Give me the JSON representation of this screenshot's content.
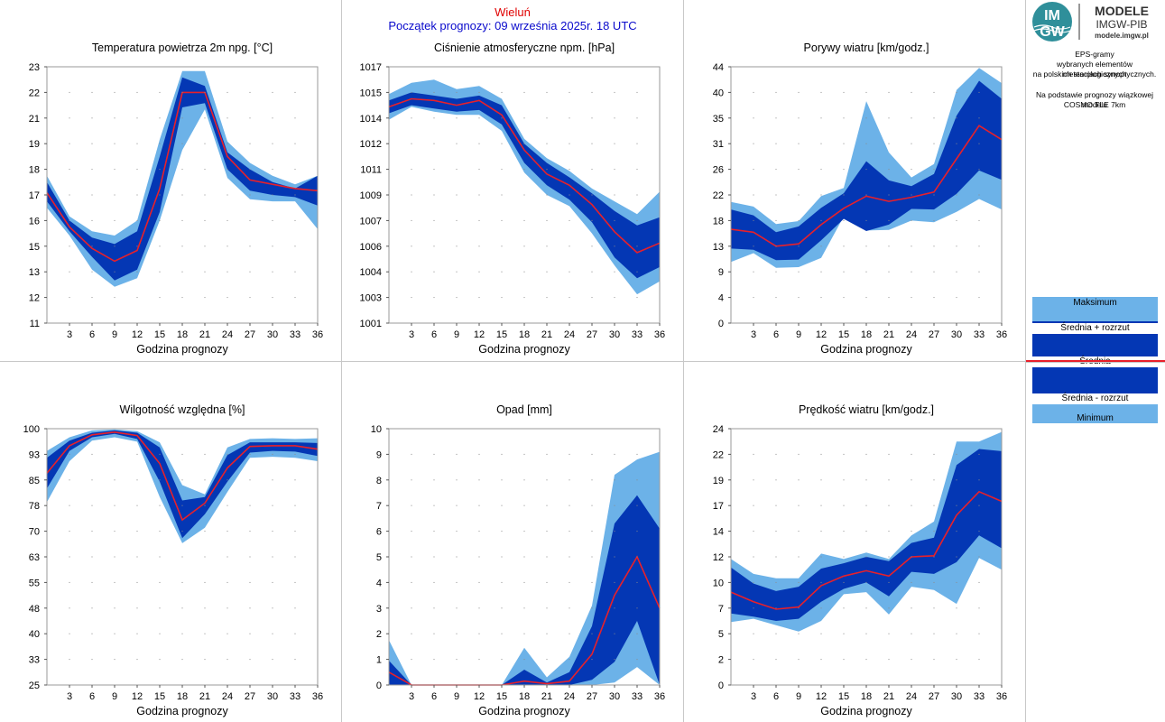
{
  "header": {
    "station": "Wieluń",
    "start": "Początek prognozy: 09 września 2025r. 18 UTC"
  },
  "logo": {
    "badge_top": "IM",
    "badge_bottom": "GW",
    "line1": "MODELE",
    "line2": "IMGW-PIB",
    "url": "modele.imgw.pl"
  },
  "side": {
    "desc1": "EPS-gramy",
    "desc2": "wybranych elementów meteorologicznych",
    "desc3": "na polskich stacjach  synoptycznych.",
    "desc4": "Na podstawie prognozy wiązkowej modelu",
    "desc5": "COSMO TLE 7km"
  },
  "legend": {
    "max": "Maksimum",
    "plus": "Średnia + rozrzut",
    "mean": "Średnia",
    "minus": "Średnia - rozrzut",
    "min": "Minimum"
  },
  "colors": {
    "outer_band": "#6cb2e8",
    "inner_band": "#0437b4",
    "mean_line": "#e8202a",
    "header_red": "#e00000",
    "header_blue": "#0a0acc"
  },
  "chart_data": [
    {
      "id": "temp",
      "type": "area",
      "title": "Temperatura powietrza 2m npg. [°C]",
      "xlabel": "Godzina prognozy",
      "xlim": [
        0,
        36
      ],
      "ylim": [
        11,
        23
      ],
      "xticks": [
        3,
        6,
        9,
        12,
        15,
        18,
        21,
        24,
        27,
        30,
        33,
        36
      ],
      "yticks": [
        "11",
        "12",
        "13",
        "15",
        "16",
        "17",
        "18",
        "19",
        "21",
        "22",
        "23"
      ],
      "x": [
        0,
        3,
        6,
        9,
        12,
        15,
        18,
        21,
        24,
        27,
        30,
        33,
        36
      ],
      "max": [
        17.9,
        16.0,
        15.3,
        15.1,
        15.8,
        19.6,
        22.8,
        22.8,
        19.5,
        18.5,
        17.9,
        17.5,
        17.9
      ],
      "plus": [
        17.6,
        15.8,
        15.0,
        14.7,
        15.3,
        18.8,
        22.5,
        22.1,
        19.0,
        18.2,
        17.6,
        17.3,
        17.9
      ],
      "mean": [
        17.1,
        15.5,
        14.5,
        13.9,
        14.4,
        17.3,
        21.8,
        21.8,
        18.8,
        17.7,
        17.5,
        17.3,
        17.2
      ],
      "minus": [
        16.7,
        15.3,
        14.1,
        13.0,
        13.5,
        16.2,
        21.1,
        21.3,
        18.2,
        17.2,
        17.0,
        16.9,
        16.5
      ],
      "min": [
        16.4,
        15.1,
        13.5,
        12.7,
        13.1,
        15.8,
        19.1,
        21.0,
        17.8,
        16.8,
        16.7,
        16.7,
        15.4
      ]
    },
    {
      "id": "press",
      "type": "area",
      "title": "Ciśnienie atmosferyczne npm. [hPa]",
      "xlabel": "Godzina prognozy",
      "xlim": [
        0,
        36
      ],
      "ylim": [
        1001,
        1017
      ],
      "xticks": [
        3,
        6,
        9,
        12,
        15,
        18,
        21,
        24,
        27,
        30,
        33,
        36
      ],
      "yticks": [
        "1001",
        "1003",
        "1004",
        "1006",
        "1007",
        "1009",
        "1011",
        "1012",
        "1014",
        "1015",
        "1017"
      ],
      "x": [
        0,
        3,
        6,
        9,
        12,
        15,
        18,
        21,
        24,
        27,
        30,
        33,
        36
      ],
      "max": [
        1015.3,
        1016.0,
        1016.2,
        1015.6,
        1015.8,
        1015.0,
        1012.5,
        1011.3,
        1010.5,
        1009.4,
        1008.6,
        1007.8,
        1009.2
      ],
      "plus": [
        1014.9,
        1015.4,
        1015.2,
        1015.0,
        1015.2,
        1014.6,
        1012.2,
        1011.0,
        1010.1,
        1009.1,
        1008.0,
        1007.1,
        1007.6
      ],
      "mean": [
        1014.5,
        1015.0,
        1014.9,
        1014.6,
        1014.9,
        1014.0,
        1011.8,
        1010.3,
        1009.6,
        1008.4,
        1006.7,
        1005.4,
        1006.0
      ],
      "minus": [
        1014.1,
        1014.6,
        1014.4,
        1014.2,
        1014.3,
        1013.4,
        1011.0,
        1009.6,
        1008.7,
        1007.3,
        1005.1,
        1003.8,
        1004.5
      ],
      "min": [
        1013.7,
        1014.5,
        1014.2,
        1014.0,
        1014.0,
        1013.0,
        1010.4,
        1009.0,
        1008.3,
        1006.6,
        1004.6,
        1002.8,
        1003.6
      ]
    },
    {
      "id": "gust",
      "type": "area",
      "title": "Porywy wiatru [km/godz.]",
      "xlabel": "Godzina prognozy",
      "xlim": [
        0,
        36
      ],
      "ylim": [
        0,
        44
      ],
      "xticks": [
        3,
        6,
        9,
        12,
        15,
        18,
        21,
        24,
        27,
        30,
        33,
        36
      ],
      "yticks": [
        "0",
        "4",
        "9",
        "13",
        "18",
        "22",
        "26",
        "31",
        "35",
        "40",
        "44"
      ],
      "x": [
        0,
        3,
        6,
        9,
        12,
        15,
        18,
        21,
        24,
        27,
        30,
        33,
        36
      ],
      "max": [
        20.8,
        20.0,
        17.0,
        17.5,
        21.8,
        23.2,
        38.1,
        29.3,
        25.0,
        27.3,
        40.0,
        43.8,
        41.2
      ],
      "plus": [
        19.5,
        18.5,
        15.6,
        16.6,
        19.8,
        22.3,
        27.8,
        24.5,
        23.5,
        25.6,
        35.6,
        41.6,
        38.5
      ],
      "mean": [
        16.1,
        15.6,
        13.2,
        13.6,
        16.9,
        19.7,
        21.8,
        20.9,
        21.6,
        22.5,
        28.2,
        33.9,
        31.5
      ],
      "minus": [
        12.8,
        12.6,
        10.8,
        10.9,
        14.2,
        17.9,
        15.8,
        16.9,
        19.6,
        19.5,
        22.2,
        26.2,
        24.6
      ],
      "min": [
        10.5,
        12.0,
        9.5,
        9.6,
        11.2,
        18.3,
        15.9,
        16.0,
        17.6,
        17.3,
        19.1,
        21.3,
        19.5
      ]
    },
    {
      "id": "humid",
      "type": "area",
      "title": "Wilgotność względna [%]",
      "xlabel": "Godzina prognozy",
      "xlim": [
        0,
        36
      ],
      "ylim": [
        25,
        100
      ],
      "xticks": [
        3,
        6,
        9,
        12,
        15,
        18,
        21,
        24,
        27,
        30,
        33,
        36
      ],
      "yticks": [
        "25",
        "33",
        "40",
        "48",
        "55",
        "63",
        "70",
        "78",
        "85",
        "93",
        "100"
      ],
      "x": [
        0,
        3,
        6,
        9,
        12,
        15,
        18,
        21,
        24,
        27,
        30,
        33,
        36
      ],
      "max": [
        93.5,
        97.5,
        99.5,
        99.8,
        99.3,
        96.0,
        83.5,
        80.8,
        94.5,
        97.0,
        97.2,
        97.0,
        97.2
      ],
      "plus": [
        91.5,
        96.5,
        98.8,
        99.5,
        98.8,
        94.5,
        79.0,
        80.0,
        92.3,
        96.0,
        96.0,
        96.0,
        95.8
      ],
      "mean": [
        87.0,
        95.0,
        98.2,
        99.0,
        98.0,
        89.8,
        73.3,
        78.2,
        88.5,
        94.8,
        95.0,
        95.0,
        94.0
      ],
      "minus": [
        82.5,
        93.5,
        97.5,
        98.5,
        97.0,
        84.5,
        68.0,
        75.0,
        84.5,
        93.0,
        93.5,
        93.3,
        92.0
      ],
      "min": [
        78.5,
        90.5,
        96.5,
        97.5,
        96.2,
        80.0,
        66.5,
        71.0,
        81.5,
        91.5,
        91.8,
        91.5,
        90.5
      ]
    },
    {
      "id": "precip",
      "type": "area",
      "title": "Opad [mm]",
      "xlabel": "Godzina prognozy",
      "xlim": [
        0,
        36
      ],
      "ylim": [
        0,
        10
      ],
      "xticks": [
        3,
        6,
        9,
        12,
        15,
        18,
        21,
        24,
        27,
        30,
        33,
        36
      ],
      "yticks": [
        "0",
        "1",
        "2",
        "3",
        "4",
        "5",
        "6",
        "7",
        "8",
        "9",
        "10"
      ],
      "x": [
        0,
        3,
        6,
        9,
        12,
        15,
        18,
        21,
        24,
        27,
        30,
        33,
        36
      ],
      "max": [
        1.75,
        0.0,
        0.0,
        0.0,
        0.0,
        0.0,
        1.45,
        0.3,
        1.1,
        3.1,
        8.2,
        8.8,
        9.1
      ],
      "plus": [
        0.95,
        0.0,
        0.0,
        0.0,
        0.0,
        0.0,
        0.6,
        0.1,
        0.5,
        2.3,
        6.3,
        7.4,
        6.1
      ],
      "mean": [
        0.5,
        0.0,
        0.0,
        0.0,
        0.0,
        0.0,
        0.15,
        0.05,
        0.15,
        1.2,
        3.5,
        5.0,
        3.0
      ],
      "minus": [
        0.0,
        0.0,
        0.0,
        0.0,
        0.0,
        0.0,
        0.0,
        0.0,
        0.0,
        0.2,
        0.9,
        2.5,
        0.0
      ],
      "min": [
        0.0,
        0.0,
        0.0,
        0.0,
        0.0,
        0.0,
        0.0,
        0.0,
        0.0,
        0.0,
        0.1,
        0.7,
        0.0
      ]
    },
    {
      "id": "wind",
      "type": "area",
      "title": "Prędkość wiatru [km/godz.]",
      "xlabel": "Godzina prognozy",
      "xlim": [
        0,
        36
      ],
      "ylim": [
        0,
        24
      ],
      "xticks": [
        3,
        6,
        9,
        12,
        15,
        18,
        21,
        24,
        27,
        30,
        33,
        36
      ],
      "yticks": [
        "0",
        "2",
        "5",
        "7",
        "10",
        "12",
        "14",
        "17",
        "19",
        "22",
        "24"
      ],
      "x": [
        0,
        3,
        6,
        9,
        12,
        15,
        18,
        21,
        24,
        27,
        30,
        33,
        36
      ],
      "max": [
        11.8,
        10.4,
        10.0,
        10.0,
        12.3,
        11.8,
        12.4,
        11.8,
        14.0,
        15.3,
        22.8,
        22.8,
        23.7
      ],
      "plus": [
        11.0,
        9.5,
        8.8,
        9.2,
        10.9,
        11.4,
        12.0,
        11.6,
        13.3,
        13.8,
        20.6,
        22.1,
        21.9
      ],
      "mean": [
        8.7,
        7.8,
        7.1,
        7.3,
        9.3,
        10.2,
        10.7,
        10.2,
        12.0,
        12.1,
        15.9,
        18.1,
        17.2
      ],
      "minus": [
        6.7,
        6.4,
        6.0,
        6.2,
        7.8,
        9.0,
        9.6,
        8.3,
        10.6,
        10.4,
        11.5,
        14.0,
        12.8
      ],
      "min": [
        5.9,
        6.2,
        5.6,
        5.0,
        6.0,
        8.5,
        8.7,
        6.6,
        9.2,
        8.9,
        7.6,
        11.9,
        10.8
      ]
    }
  ]
}
